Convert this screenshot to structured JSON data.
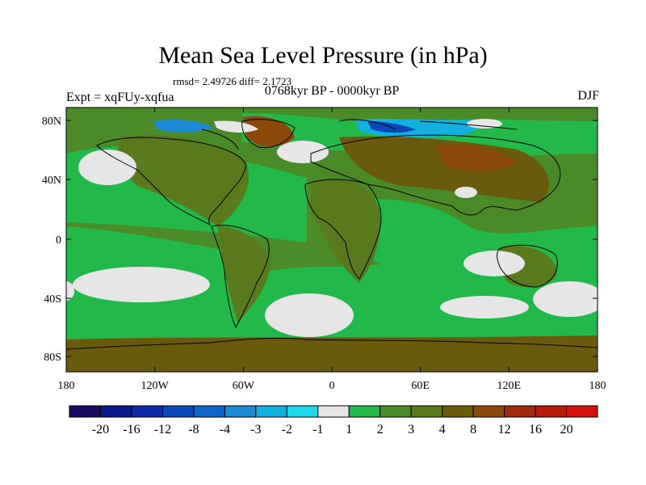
{
  "title": "Mean Sea Level Pressure (in hPa)",
  "stats": "rmsd= 2.49726 diff= 2.1723",
  "subtitle": "0768kyr BP - 0000kyr BP",
  "experiment": "Expt = xqFUy-xqfua",
  "season": "DJF",
  "y_ticks": [
    "80N",
    "40N",
    "0",
    "40S",
    "80S"
  ],
  "x_ticks": [
    "180",
    "120W",
    "60W",
    "0",
    "60E",
    "120E",
    "180"
  ],
  "colorbar": {
    "colors": [
      "#1a0a5e",
      "#0b1a8a",
      "#0d2aa8",
      "#0a47b8",
      "#0f66c8",
      "#1a8ad6",
      "#12b0de",
      "#1ed8e8",
      "#e6e6e6",
      "#22b84a",
      "#4a8a28",
      "#5a7a1e",
      "#6a5a0e",
      "#8a4a0a",
      "#a02a0a",
      "#b8180a",
      "#d4100a"
    ],
    "labels": [
      "-20",
      "-16",
      "-12",
      "-8",
      "-4",
      "-3",
      "-2",
      "-1",
      "1",
      "2",
      "3",
      "4",
      "8",
      "12",
      "16",
      "20"
    ]
  }
}
